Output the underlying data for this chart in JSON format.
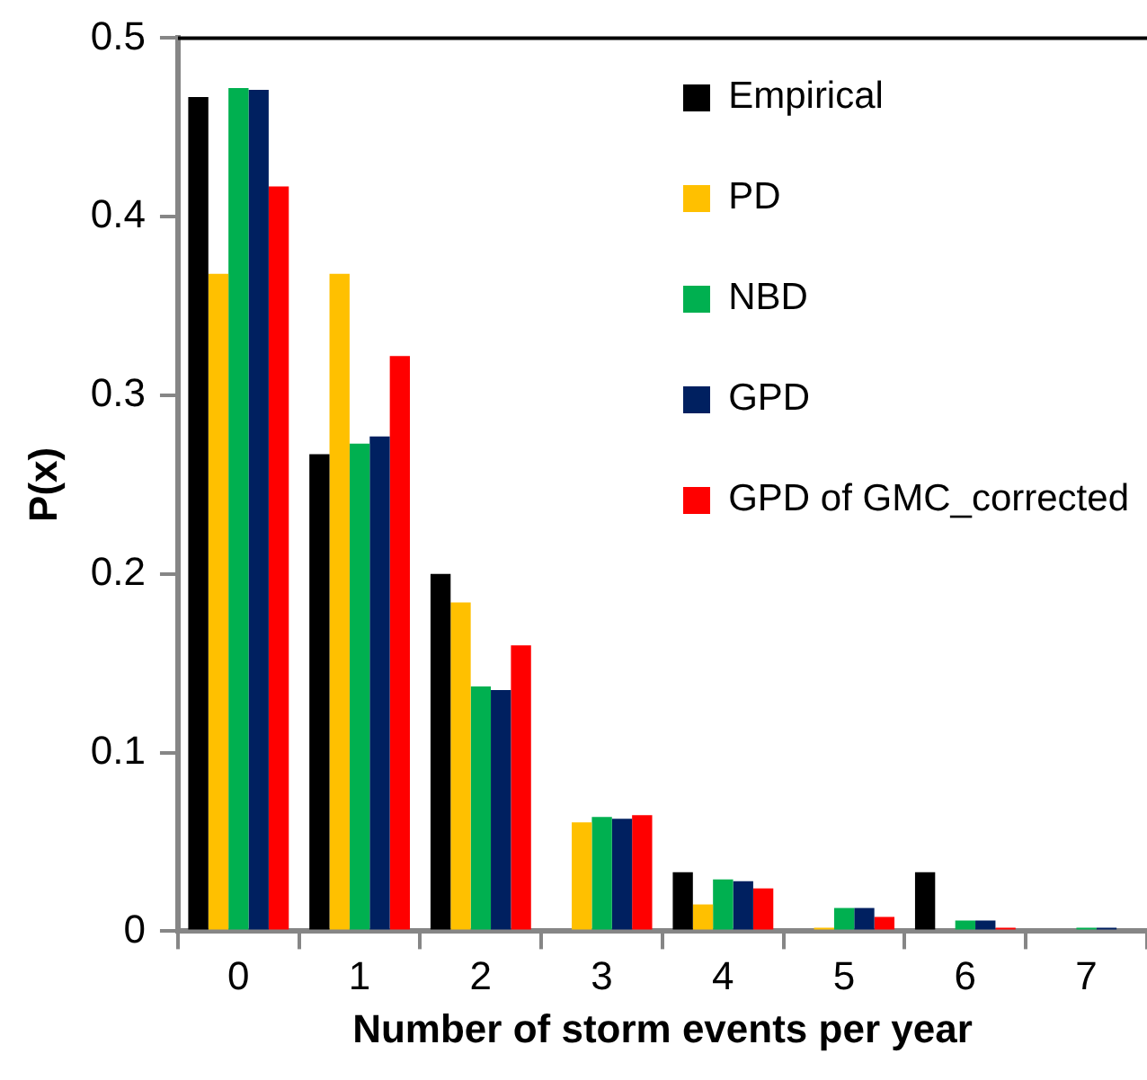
{
  "chart_data": {
    "type": "bar",
    "xlabel": "Number of storm events per year",
    "ylabel": "P(x)",
    "categories": [
      "0",
      "1",
      "2",
      "3",
      "4",
      "5",
      "6",
      "7"
    ],
    "series": [
      {
        "name": "Empirical",
        "color": "#000000",
        "values": [
          0.467,
          0.267,
          0.2,
          0,
          0.033,
          0,
          0.033,
          0
        ]
      },
      {
        "name": "PD",
        "color": "#ffc000",
        "values": [
          0.368,
          0.368,
          0.184,
          0.061,
          0.015,
          0.002,
          0,
          0
        ]
      },
      {
        "name": "NBD",
        "color": "#00b050",
        "values": [
          0.472,
          0.273,
          0.137,
          0.064,
          0.029,
          0.013,
          0.006,
          0.002
        ]
      },
      {
        "name": "GPD",
        "color": "#002060",
        "values": [
          0.471,
          0.277,
          0.135,
          0.063,
          0.028,
          0.013,
          0.006,
          0.002
        ]
      },
      {
        "name": "GPD of GMC_corrected",
        "color": "#ff0000",
        "values": [
          0.417,
          0.322,
          0.16,
          0.065,
          0.024,
          0.008,
          0.002,
          0
        ]
      }
    ],
    "ylim": [
      0,
      0.5
    ],
    "yticks": [
      0,
      0.1,
      0.2,
      0.3,
      0.4,
      0.5
    ],
    "grid": false,
    "legend": "top right"
  }
}
